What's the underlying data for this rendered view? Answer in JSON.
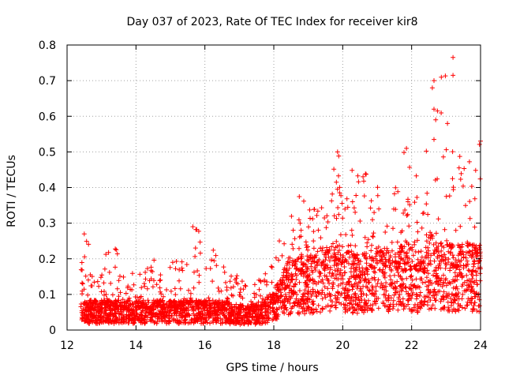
{
  "chart_data": {
    "type": "scatter",
    "title": "Day 037 of 2023, Rate Of TEC Index for receiver kir8",
    "xlabel": "GPS time / hours",
    "ylabel": "ROTI / TECUs",
    "xlim": [
      12,
      24
    ],
    "ylim": [
      0,
      0.8
    ],
    "xticks": [
      "12",
      "14",
      "16",
      "18",
      "20",
      "22",
      "24"
    ],
    "yticks": [
      "0",
      "0.1",
      "0.2",
      "0.3",
      "0.4",
      "0.5",
      "0.6",
      "0.7",
      "0.8"
    ],
    "grid": true,
    "marker": "+",
    "color": "#ff0000",
    "series": [
      {
        "name": "ROTI",
        "description": "dense scatter; approximate envelope per time bin",
        "x_start": 12.4,
        "x_end": 24.0,
        "envelope": [
          {
            "x": 12.5,
            "typical": 0.06,
            "max": 0.27
          },
          {
            "x": 13.0,
            "typical": 0.06,
            "max": 0.2
          },
          {
            "x": 13.5,
            "typical": 0.06,
            "max": 0.25
          },
          {
            "x": 14.0,
            "typical": 0.06,
            "max": 0.15
          },
          {
            "x": 14.5,
            "typical": 0.06,
            "max": 0.2
          },
          {
            "x": 15.0,
            "typical": 0.06,
            "max": 0.2
          },
          {
            "x": 15.5,
            "typical": 0.06,
            "max": 0.19
          },
          {
            "x": 15.7,
            "typical": 0.06,
            "max": 0.29
          },
          {
            "x": 16.2,
            "typical": 0.06,
            "max": 0.26
          },
          {
            "x": 16.5,
            "typical": 0.06,
            "max": 0.2
          },
          {
            "x": 17.0,
            "typical": 0.05,
            "max": 0.15
          },
          {
            "x": 17.5,
            "typical": 0.05,
            "max": 0.15
          },
          {
            "x": 18.0,
            "typical": 0.08,
            "max": 0.2
          },
          {
            "x": 18.5,
            "typical": 0.15,
            "max": 0.36
          },
          {
            "x": 19.0,
            "typical": 0.15,
            "max": 0.4
          },
          {
            "x": 19.5,
            "typical": 0.17,
            "max": 0.33
          },
          {
            "x": 19.8,
            "typical": 0.18,
            "max": 0.5
          },
          {
            "x": 20.5,
            "typical": 0.15,
            "max": 0.46
          },
          {
            "x": 21.0,
            "typical": 0.17,
            "max": 0.4
          },
          {
            "x": 21.5,
            "typical": 0.17,
            "max": 0.45
          },
          {
            "x": 21.8,
            "typical": 0.18,
            "max": 0.51
          },
          {
            "x": 22.3,
            "typical": 0.16,
            "max": 0.45
          },
          {
            "x": 22.6,
            "typical": 0.2,
            "max": 0.7
          },
          {
            "x": 23.2,
            "typical": 0.17,
            "max": 0.77
          },
          {
            "x": 23.5,
            "typical": 0.18,
            "max": 0.47
          },
          {
            "x": 24.0,
            "typical": 0.17,
            "max": 0.53
          }
        ],
        "notable_points": [
          {
            "x": 23.2,
            "y": 0.765
          },
          {
            "x": 23.2,
            "y": 0.715
          },
          {
            "x": 22.65,
            "y": 0.7
          },
          {
            "x": 22.6,
            "y": 0.68
          },
          {
            "x": 22.65,
            "y": 0.62
          },
          {
            "x": 22.75,
            "y": 0.615
          },
          {
            "x": 22.7,
            "y": 0.59
          },
          {
            "x": 22.65,
            "y": 0.535
          },
          {
            "x": 24.0,
            "y": 0.53
          },
          {
            "x": 21.85,
            "y": 0.51
          },
          {
            "x": 19.85,
            "y": 0.5
          },
          {
            "x": 15.65,
            "y": 0.29
          },
          {
            "x": 12.5,
            "y": 0.27
          }
        ]
      }
    ]
  }
}
